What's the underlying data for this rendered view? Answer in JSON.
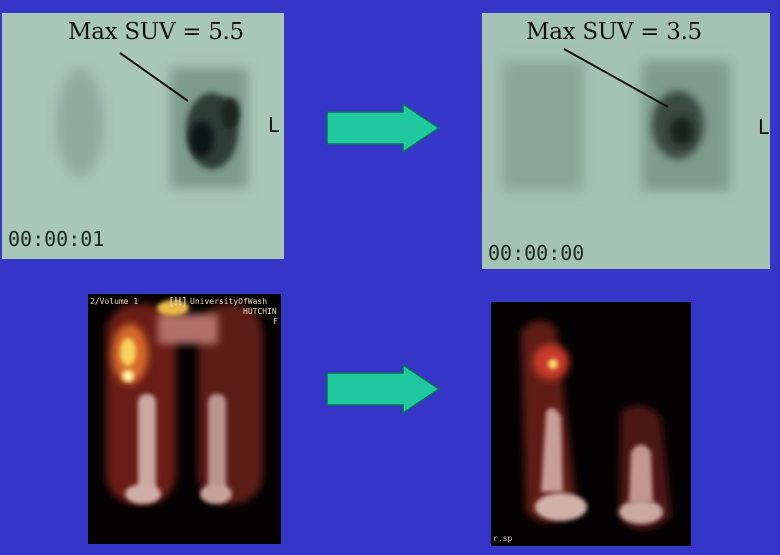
{
  "pre_pet": {
    "suv_label": "Max SUV = 5.5",
    "side_marker": "L",
    "timecode": "00:00:01"
  },
  "post_pet": {
    "suv_label": "Max SUV = 3.5",
    "side_marker": "L",
    "timecode": "00:00:00"
  },
  "pre_ct": {
    "series_label": "2/Volume 1",
    "orientation_marker": "[H]",
    "institution_label": "UniversityOfWash",
    "patient_label": "HUTCHIN",
    "sex_label": "F"
  },
  "post_ct": {
    "footer_label": "r.sp"
  },
  "colors": {
    "background": "#3535c8",
    "arrow_fill": "#20c8a0",
    "film": "#a9c7b7"
  },
  "icons": {
    "arrow": "right-arrow-icon"
  }
}
